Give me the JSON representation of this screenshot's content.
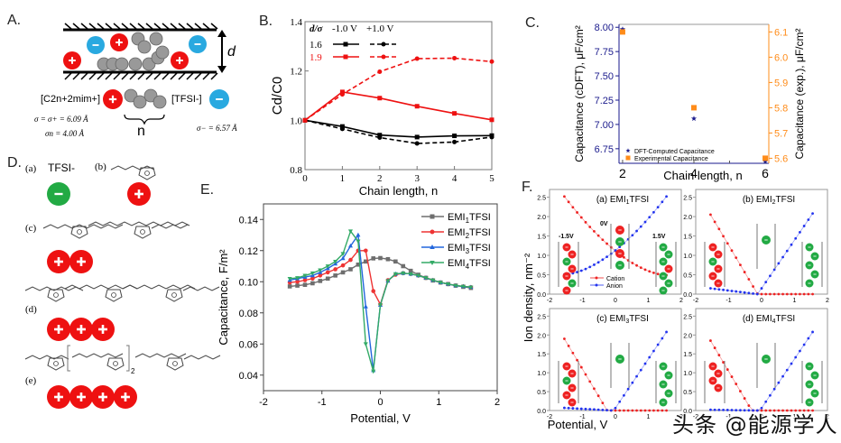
{
  "panel_labels": {
    "A": "A.",
    "B": "B.",
    "C": "C.",
    "D": "D.",
    "E": "E.",
    "F": "F."
  },
  "panelA": {
    "d_label": "d",
    "cation_label": "[C2n+2mim+]",
    "anion_label": "[TFSI-]",
    "sigma_plus": "σ = σ+ = 6.09 Å",
    "sigma_n": "σn = 4.00 Å",
    "sigma_minus": "σ− = 6.57 Å",
    "n_label": "n",
    "plus": "+",
    "minus": "−"
  },
  "panelD": {
    "items": [
      {
        "tag": "(a)",
        "label": "TFSI-",
        "charge": "-",
        "count": 1
      },
      {
        "tag": "(b)",
        "charge": "+",
        "count": 1
      },
      {
        "tag": "(c)",
        "charge": "+",
        "count": 2
      },
      {
        "tag": "(d)",
        "charge": "+",
        "count": 3
      },
      {
        "tag": "(e)",
        "charge": "+",
        "count": 4
      }
    ],
    "subscript_2": "2"
  },
  "chart_data": [
    {
      "id": "B",
      "type": "line",
      "title": "",
      "xlabel": "Chain length, n",
      "ylabel": "Cd/C0",
      "xlim": [
        0,
        5
      ],
      "ylim": [
        0.8,
        1.4
      ],
      "xticks": [
        "0",
        "1",
        "2",
        "3",
        "4",
        "5"
      ],
      "yticks": [
        "0.8",
        "1.0",
        "1.2",
        "1.4"
      ],
      "legend_header": [
        "d/σ",
        "-1.0 V",
        "+1.0 V"
      ],
      "legend_rows": [
        "1.6",
        "1.9"
      ],
      "legend": "top-left",
      "x": [
        0,
        1,
        2,
        3,
        4,
        5
      ],
      "series": [
        {
          "name": "1.6, -1.0 V",
          "color": "#000000",
          "dash": false,
          "marker": "square",
          "values": [
            1.0,
            0.975,
            0.94,
            0.932,
            0.937,
            0.938
          ]
        },
        {
          "name": "1.6, +1.0 V",
          "color": "#000000",
          "dash": true,
          "marker": "circle",
          "values": [
            1.0,
            0.965,
            0.93,
            0.906,
            0.912,
            0.932
          ]
        },
        {
          "name": "1.9, -1.0 V",
          "color": "#ee1111",
          "dash": false,
          "marker": "square",
          "values": [
            1.0,
            1.115,
            1.09,
            1.057,
            1.028,
            1.002
          ]
        },
        {
          "name": "1.9, +1.0 V",
          "color": "#ee1111",
          "dash": true,
          "marker": "circle",
          "values": [
            1.0,
            1.105,
            1.197,
            1.25,
            1.252,
            1.238
          ]
        }
      ]
    },
    {
      "id": "C",
      "type": "scatter",
      "title": "",
      "xlabel": "Chain length, n",
      "ylabel": "Capacitance (cDFT), μF/cm²",
      "ylabel_right": "Capacitance (exp.), μF/cm²",
      "xlim": [
        1.9,
        6.1
      ],
      "ylim": [
        6.6,
        8.03
      ],
      "ylim_right": [
        5.58,
        6.13
      ],
      "xticks": [
        "2",
        "4",
        "6"
      ],
      "yticks": [
        "6.75",
        "7.00",
        "7.25",
        "7.50",
        "7.75",
        "8.00"
      ],
      "yticks_right": [
        "5.6",
        "5.7",
        "5.8",
        "5.9",
        "6.0",
        "6.1"
      ],
      "legend": "bottom-left",
      "series": [
        {
          "name": "DFT-Computed Capacitance",
          "color": "#1a1a8c",
          "marker": "star",
          "axis": "left",
          "x": [
            2,
            4,
            6
          ],
          "values": [
            7.98,
            7.06,
            6.6
          ]
        },
        {
          "name": "Experimental Capacitance",
          "color": "#ff8c1a",
          "marker": "square",
          "axis": "right",
          "x": [
            2,
            4,
            6
          ],
          "values": [
            6.1,
            5.8,
            5.6
          ]
        }
      ]
    },
    {
      "id": "E",
      "type": "line",
      "title": "",
      "xlabel": "Potential,  V",
      "ylabel": "Capacitance, F/m²",
      "xlim": [
        -2,
        2
      ],
      "ylim": [
        0.03,
        0.15
      ],
      "xticks": [
        "-2",
        "-1",
        "0",
        "1",
        "2"
      ],
      "yticks": [
        "0.04",
        "0.06",
        "0.08",
        "0.10",
        "0.12",
        "0.14"
      ],
      "legend": "top-right",
      "series": [
        {
          "name": "EMI1TFSI",
          "sub": "1",
          "color": "#6e6e6e",
          "marker": "square",
          "x": [
            -1.55,
            -1.42,
            -1.29,
            -1.16,
            -1.03,
            -0.9,
            -0.77,
            -0.64,
            -0.51,
            -0.38,
            -0.25,
            -0.12,
            0.0,
            0.13,
            0.26,
            0.39,
            0.52,
            0.65,
            0.78,
            0.9,
            1.03,
            1.16,
            1.29,
            1.42,
            1.55
          ],
          "values": [
            0.097,
            0.0975,
            0.098,
            0.099,
            0.1005,
            0.102,
            0.104,
            0.106,
            0.108,
            0.111,
            0.113,
            0.115,
            0.1152,
            0.1145,
            0.113,
            0.11,
            0.107,
            0.1045,
            0.1025,
            0.1008,
            0.0995,
            0.0985,
            0.0975,
            0.0967,
            0.096
          ]
        },
        {
          "name": "EMI2TFSI",
          "sub": "2",
          "color": "#ee3333",
          "marker": "circle",
          "x": [
            -1.55,
            -1.42,
            -1.29,
            -1.16,
            -1.03,
            -0.9,
            -0.77,
            -0.64,
            -0.51,
            -0.38,
            -0.25,
            -0.12,
            0.0,
            0.13,
            0.26,
            0.39,
            0.52,
            0.65,
            0.78,
            0.9,
            1.03,
            1.16,
            1.29,
            1.42,
            1.55
          ],
          "values": [
            0.0995,
            0.1,
            0.101,
            0.102,
            0.104,
            0.106,
            0.108,
            0.1105,
            0.114,
            0.12,
            0.12,
            0.094,
            0.0855,
            0.101,
            0.1045,
            0.1055,
            0.105,
            0.104,
            0.1025,
            0.101,
            0.0995,
            0.0985,
            0.0975,
            0.097,
            0.0965
          ]
        },
        {
          "name": "EMI3TFSI",
          "sub": "3",
          "color": "#2266dd",
          "marker": "triangle-up",
          "x": [
            -1.55,
            -1.42,
            -1.29,
            -1.16,
            -1.03,
            -0.9,
            -0.77,
            -0.64,
            -0.51,
            -0.38,
            -0.25,
            -0.12,
            0.0,
            0.13,
            0.26,
            0.39,
            0.52,
            0.65,
            0.78,
            0.9,
            1.03,
            1.16,
            1.29,
            1.42,
            1.55
          ],
          "values": [
            0.101,
            0.102,
            0.103,
            0.104,
            0.106,
            0.1085,
            0.1115,
            0.115,
            0.123,
            0.13,
            0.084,
            0.043,
            0.085,
            0.1005,
            0.105,
            0.1055,
            0.105,
            0.104,
            0.1025,
            0.101,
            0.0995,
            0.0985,
            0.0975,
            0.097,
            0.0965
          ]
        },
        {
          "name": "EMI4TFSI",
          "sub": "4",
          "color": "#33aa66",
          "marker": "triangle-down",
          "x": [
            -1.55,
            -1.42,
            -1.29,
            -1.16,
            -1.03,
            -0.9,
            -0.77,
            -0.64,
            -0.51,
            -0.38,
            -0.25,
            -0.12,
            0.0,
            0.13,
            0.26,
            0.39,
            0.52,
            0.65,
            0.78,
            0.9,
            1.03,
            1.16,
            1.29,
            1.42,
            1.55
          ],
          "values": [
            0.102,
            0.1025,
            0.104,
            0.1055,
            0.1075,
            0.11,
            0.113,
            0.118,
            0.1325,
            0.126,
            0.06,
            0.0425,
            0.085,
            0.1005,
            0.105,
            0.1055,
            0.105,
            0.104,
            0.1025,
            0.101,
            0.0995,
            0.0985,
            0.0975,
            0.097,
            0.0965
          ]
        }
      ]
    },
    {
      "id": "F",
      "type": "line",
      "title": "",
      "xlabel": "Potential,  V",
      "ylabel": "Ion density, nm⁻²",
      "xlim": [
        -2,
        2
      ],
      "ylim": [
        0,
        2.7
      ],
      "xticks": [
        "-2",
        "-1",
        "0",
        "1",
        "2"
      ],
      "yticks": [
        "0.0",
        "0.5",
        "1.0",
        "1.5",
        "2.0",
        "2.5"
      ],
      "legend": [
        "Cation",
        "Anion"
      ],
      "cation_color": "#ee2222",
      "anion_color": "#2233ee",
      "subplots": [
        {
          "title": "(a) EMI1TFSI",
          "sub": "1",
          "annotations": [
            "-1.5V",
            "0V",
            "1.5V"
          ],
          "cation": {
            "x0": -1.55,
            "x1": 1.55,
            "values_at_ends": [
              2.52,
              0.49
            ],
            "shape": "decay"
          },
          "anion": {
            "x0": -1.55,
            "x1": 1.55,
            "values_at_ends": [
              0.51,
              2.52
            ],
            "shape": "growth"
          }
        },
        {
          "title": "(b) EMI2TFSI",
          "sub": "2",
          "cation": {
            "points": [
              [
                -1.55,
                2.05
              ],
              [
                -0.12,
                0.0
              ],
              [
                1.55,
                0.0
              ]
            ]
          },
          "anion": {
            "points": [
              [
                -1.55,
                0.15
              ],
              [
                -0.12,
                0.0
              ],
              [
                1.55,
                2.08
              ]
            ]
          }
        },
        {
          "title": "(c) EMI3TFSI",
          "sub": "3",
          "cation": {
            "points": [
              [
                -1.55,
                1.9
              ],
              [
                -0.25,
                0.0
              ],
              [
                1.55,
                0.0
              ]
            ]
          },
          "anion": {
            "points": [
              [
                -1.55,
                0.07
              ],
              [
                -0.05,
                0.0
              ],
              [
                1.55,
                2.08
              ]
            ]
          }
        },
        {
          "title": "(d) EMI4TFSI",
          "sub": "4",
          "cation": {
            "points": [
              [
                -1.55,
                1.85
              ],
              [
                -0.3,
                0.0
              ],
              [
                1.55,
                0.0
              ]
            ]
          },
          "anion": {
            "points": [
              [
                -1.55,
                0.02
              ],
              [
                -0.05,
                0.0
              ],
              [
                1.55,
                2.08
              ]
            ]
          }
        }
      ]
    }
  ],
  "watermark": "头条 @能源学人"
}
